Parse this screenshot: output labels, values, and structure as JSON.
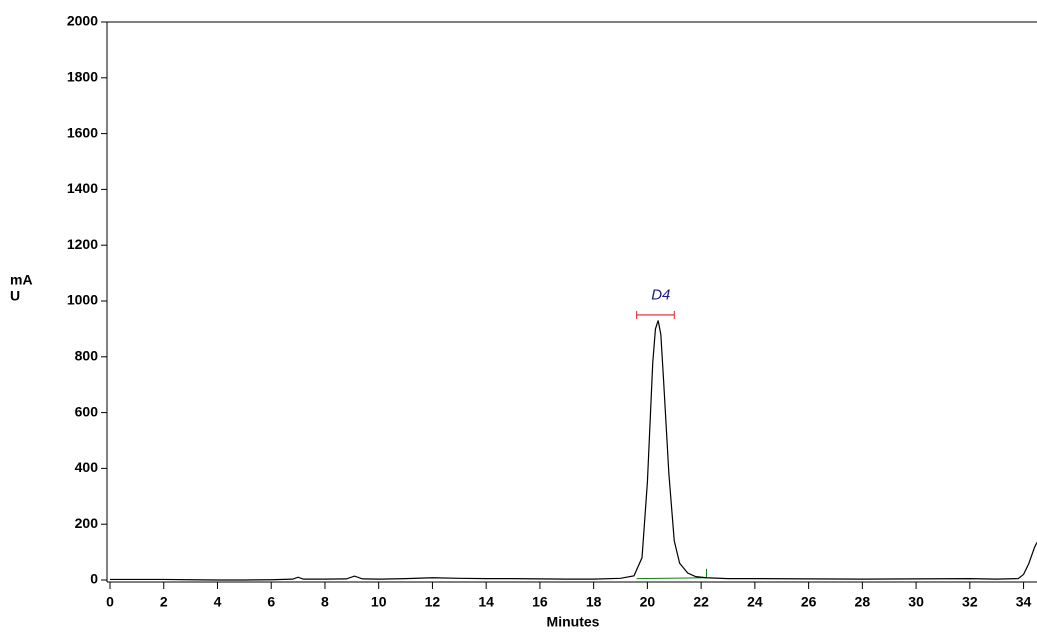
{
  "chart_data": {
    "type": "line",
    "x_label": "Minutes",
    "y_label_lines": [
      "mA",
      "U"
    ],
    "xlim": [
      0,
      34.5
    ],
    "xticks": [
      0,
      2,
      4,
      6,
      8,
      10,
      12,
      14,
      16,
      18,
      20,
      22,
      24,
      26,
      28,
      30,
      32,
      34
    ],
    "ylim": [
      0,
      2000
    ],
    "yticks": [
      0,
      200,
      400,
      600,
      800,
      1000,
      1200,
      1400,
      1600,
      1800,
      2000
    ],
    "series": [
      {
        "color": "#000000",
        "x": [
          0,
          1,
          2,
          3,
          4,
          5,
          6,
          6.8,
          7,
          7.2,
          8,
          8.8,
          9.1,
          9.4,
          10,
          11,
          12,
          13,
          14,
          15,
          16,
          17,
          18,
          19,
          19.5,
          19.8,
          20.0,
          20.2,
          20.3,
          20.4,
          20.5,
          20.6,
          20.8,
          21.0,
          21.2,
          21.5,
          21.8,
          22.2,
          23,
          24,
          26,
          28,
          30,
          32,
          33,
          33.8,
          34.0,
          34.2,
          34.4,
          34.5
        ],
        "values": [
          2,
          2,
          2,
          1,
          0,
          0,
          1,
          3,
          10,
          3,
          3,
          4,
          14,
          4,
          3,
          5,
          8,
          6,
          5,
          5,
          4,
          3,
          3,
          6,
          15,
          80,
          350,
          780,
          900,
          930,
          880,
          720,
          380,
          140,
          60,
          25,
          12,
          8,
          5,
          5,
          4,
          3,
          4,
          5,
          3,
          5,
          20,
          60,
          115,
          135
        ]
      }
    ],
    "peak_label": {
      "text": "D4",
      "x": 20.5,
      "y": 1020,
      "color": "#1a1a80"
    },
    "peak_window": {
      "x": [
        19.6,
        21.0
      ],
      "y": 950,
      "color": "#e02020"
    },
    "integration_baseline": {
      "x": [
        19.6,
        22.2
      ],
      "y": [
        5,
        8
      ],
      "marker_height": 40,
      "color": "#108010"
    }
  }
}
